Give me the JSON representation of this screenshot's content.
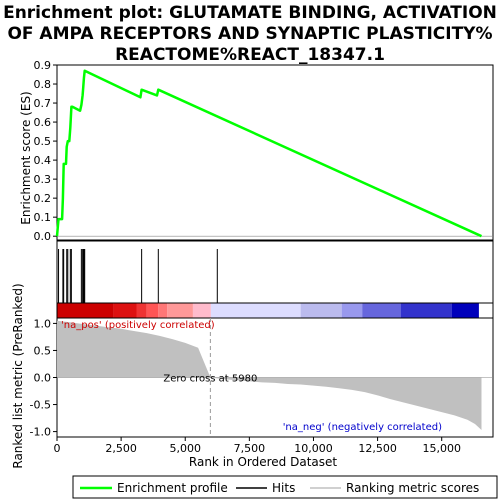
{
  "chart_data": {
    "type": "line",
    "title_lines": [
      "Enrichment plot: GLUTAMATE BINDING, ACTIVATION",
      "OF AMPA RECEPTORS AND SYNAPTIC PLASTICITY%",
      "REACTOME%REACT_18347.1"
    ],
    "xlabel": "Rank in Ordered Dataset",
    "es_ylabel": "Enrichment score (ES)",
    "metric_ylabel_lines": [
      "Ranked list metric (PreRanked)"
    ],
    "xlim": [
      0,
      17000
    ],
    "es_ylim": [
      -0.02,
      0.9
    ],
    "metric_ylim": [
      -1.1,
      1.1
    ],
    "x_ticks": [
      0,
      2500,
      5000,
      7500,
      10000,
      12500,
      15000
    ],
    "x_tick_labels": [
      "0",
      "2,500",
      "5,000",
      "7,500",
      "10,000",
      "12,500",
      "15,000"
    ],
    "es_ticks": [
      0.0,
      0.1,
      0.2,
      0.3,
      0.4,
      0.5,
      0.6,
      0.7,
      0.8,
      0.9
    ],
    "es_tick_labels": [
      "0.0",
      "0.1",
      "0.2",
      "0.3",
      "0.4",
      "0.5",
      "0.6",
      "0.7",
      "0.8",
      "0.9"
    ],
    "metric_ticks": [
      1.0,
      0.5,
      0.0,
      -0.5,
      -1.0
    ],
    "metric_tick_labels": [
      "1.0",
      "0.5",
      "0.0",
      "-0.5",
      "-1.0"
    ],
    "series": [
      {
        "name": "Enrichment profile",
        "color": "#00ff00",
        "x": [
          0,
          60,
          120,
          150,
          200,
          230,
          260,
          300,
          350,
          380,
          420,
          450,
          480,
          520,
          560,
          600,
          900,
          950,
          1000,
          1020,
          1050,
          1080,
          3250,
          3300,
          3900,
          3950,
          16550
        ],
        "y": [
          0.0,
          0.09,
          0.09,
          0.09,
          0.09,
          0.2,
          0.38,
          0.38,
          0.38,
          0.47,
          0.5,
          0.5,
          0.5,
          0.57,
          0.68,
          0.68,
          0.66,
          0.69,
          0.74,
          0.78,
          0.83,
          0.87,
          0.73,
          0.77,
          0.74,
          0.77,
          0.0
        ]
      }
    ],
    "hits": [
      60,
      230,
      260,
      380,
      420,
      520,
      560,
      950,
      1000,
      1020,
      1050,
      1080,
      3300,
      3950,
      6250
    ],
    "heatmap_colors": [
      "#cc0000",
      "#dd1111",
      "#ee3333",
      "#ff5555",
      "#ff7777",
      "#ff9999",
      "#ffbbcc",
      "#ddddff",
      "#bbbbee",
      "#9999ee",
      "#6666dd",
      "#3333cc",
      "#0000bb"
    ],
    "metric_curve": {
      "x": [
        0,
        500,
        1000,
        1500,
        2000,
        2500,
        3000,
        3500,
        4000,
        4500,
        5000,
        5500,
        5980,
        6500,
        7000,
        7500,
        8000,
        8500,
        9000,
        9500,
        10000,
        10500,
        11000,
        11500,
        12000,
        12500,
        13000,
        13500,
        14000,
        14500,
        15000,
        15500,
        16000,
        16300,
        16550
      ],
      "y": [
        1.05,
        1.02,
        0.99,
        0.96,
        0.93,
        0.9,
        0.86,
        0.82,
        0.77,
        0.71,
        0.64,
        0.55,
        0.0,
        -0.03,
        -0.05,
        -0.07,
        -0.09,
        -0.1,
        -0.12,
        -0.13,
        -0.15,
        -0.17,
        -0.2,
        -0.23,
        -0.27,
        -0.33,
        -0.4,
        -0.46,
        -0.52,
        -0.58,
        -0.64,
        -0.7,
        -0.78,
        -0.86,
        -0.97
      ]
    },
    "zero_cross_x": 5980,
    "annotations": {
      "pos_label": "'na_pos' (positively correlated)",
      "neg_label": "'na_neg' (negatively correlated)",
      "zero_cross_label": "Zero cross at 5980"
    },
    "legend": {
      "placement": "bottom",
      "entries": [
        {
          "label": "Enrichment profile",
          "color": "#00ff00"
        },
        {
          "label": "Hits",
          "color": "#000000"
        },
        {
          "label": "Ranking metric scores",
          "color": "#c0c0c0"
        }
      ]
    },
    "colors": {
      "pos_label": "#cc0000",
      "neg_label": "#0000cc",
      "metric_fill": "#c0c0c0"
    }
  }
}
